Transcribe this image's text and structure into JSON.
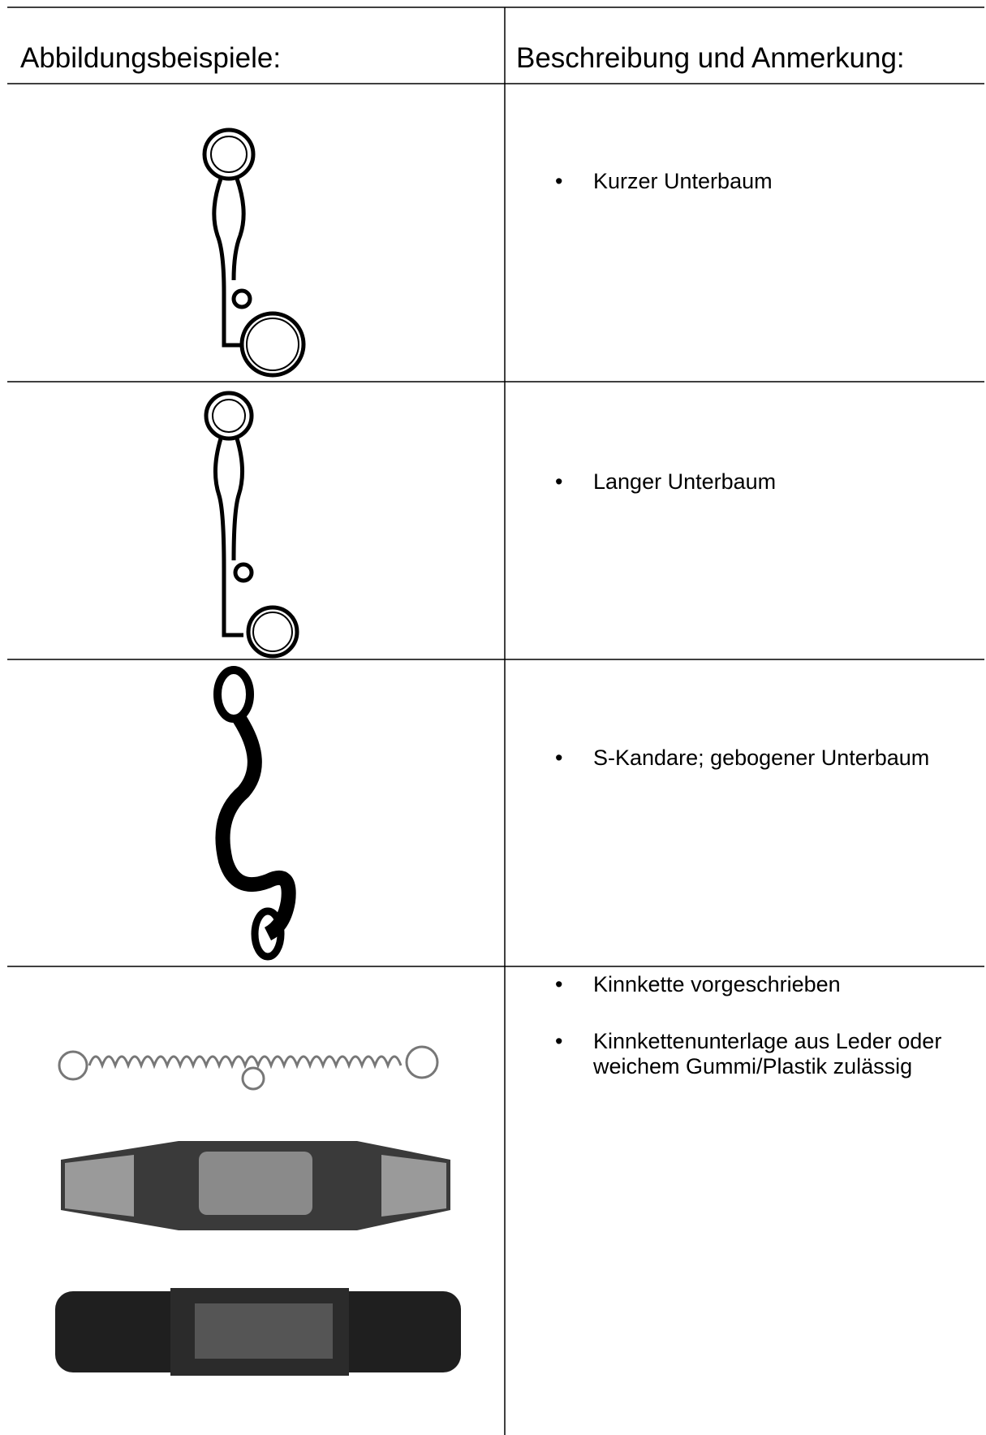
{
  "table": {
    "header": [
      "Abbildungsbeispiele:",
      "Beschreibung und Anmerkung:"
    ],
    "rows": [
      {
        "bullets": [
          "Kurzer Unterbaum"
        ]
      },
      {
        "bullets": [
          "Langer Unterbaum"
        ]
      },
      {
        "bullets": [
          "S-Kandare; gebogener Unterbaum"
        ]
      },
      {
        "bullets": [
          "Kinnkette vorgeschrieben",
          "Kinnkettenunterlage aus Leder oder weichem Gummi/Plastik zulässig"
        ]
      }
    ]
  }
}
